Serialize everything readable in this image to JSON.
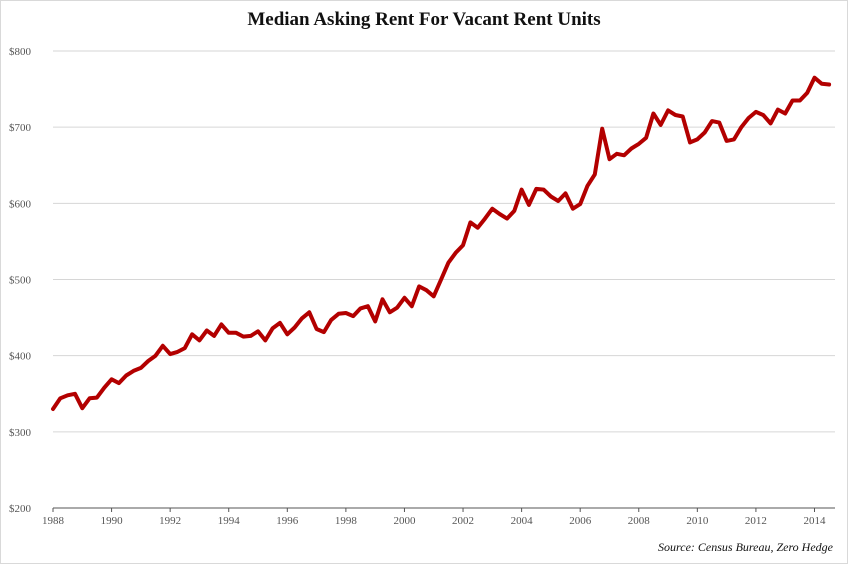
{
  "chart_data": {
    "type": "line",
    "title": "Median Asking Rent For Vacant Rent Units",
    "source": "Source: Census Bureau, Zero Hedge",
    "xlim": [
      1988,
      2014.7
    ],
    "ylim": [
      200,
      800
    ],
    "x_ticks": [
      1988,
      1990,
      1992,
      1994,
      1996,
      1998,
      2000,
      2002,
      2004,
      2006,
      2008,
      2010,
      2012,
      2014
    ],
    "y_ticks": [
      200,
      300,
      400,
      500,
      600,
      700,
      800
    ],
    "y_tick_labels": [
      "$200",
      "$300",
      "$400",
      "$500",
      "$600",
      "$700",
      "$800"
    ],
    "grid": true,
    "line_color": "#b30000",
    "series": [
      {
        "x": [
          1988.0,
          1988.25,
          1988.5,
          1988.75,
          1989.0,
          1989.25,
          1989.5,
          1989.75,
          1990.0,
          1990.25,
          1990.5,
          1990.75,
          1991.0,
          1991.25,
          1991.5,
          1991.75,
          1992.0,
          1992.25,
          1992.5,
          1992.75,
          1993.0,
          1993.25,
          1993.5,
          1993.75,
          1994.0,
          1994.25,
          1994.5,
          1994.75,
          1995.0,
          1995.25,
          1995.5,
          1995.75,
          1996.0,
          1996.25,
          1996.5,
          1996.75,
          1997.0,
          1997.25,
          1997.5,
          1997.75,
          1998.0,
          1998.25,
          1998.5,
          1998.75,
          1999.0,
          1999.25,
          1999.5,
          1999.75,
          2000.0,
          2000.25,
          2000.5,
          2000.75,
          2001.0,
          2001.25,
          2001.5,
          2001.75,
          2002.0,
          2002.25,
          2002.5,
          2002.75,
          2003.0,
          2003.25,
          2003.5,
          2003.75,
          2004.0,
          2004.25,
          2004.5,
          2004.75,
          2005.0,
          2005.25,
          2005.5,
          2005.75,
          2006.0,
          2006.25,
          2006.5,
          2006.75,
          2007.0,
          2007.25,
          2007.5,
          2007.75,
          2008.0,
          2008.25,
          2008.5,
          2008.75,
          2009.0,
          2009.25,
          2009.5,
          2009.75,
          2010.0,
          2010.25,
          2010.5,
          2010.75,
          2011.0,
          2011.25,
          2011.5,
          2011.75,
          2012.0,
          2012.25,
          2012.5,
          2012.75,
          2013.0,
          2013.25,
          2013.5,
          2013.75,
          2014.0,
          2014.25,
          2014.5
        ],
        "y": [
          330,
          344,
          348,
          350,
          331,
          344,
          345,
          358,
          369,
          364,
          374,
          380,
          384,
          393,
          400,
          413,
          402,
          405,
          410,
          428,
          420,
          433,
          426,
          441,
          430,
          430,
          425,
          426,
          432,
          420,
          436,
          443,
          428,
          437,
          449,
          457,
          435,
          431,
          447,
          455,
          456,
          452,
          462,
          465,
          445,
          474,
          457,
          463,
          476,
          465,
          491,
          486,
          478,
          500,
          522,
          535,
          545,
          575,
          568,
          580,
          593,
          586,
          580,
          590,
          618,
          598,
          619,
          618,
          609,
          603,
          613,
          593,
          599,
          623,
          638,
          698,
          658,
          665,
          663,
          672,
          678,
          686,
          718,
          703,
          722,
          716,
          714,
          680,
          684,
          693,
          708,
          706,
          682,
          684,
          700,
          712,
          720,
          716,
          705,
          723,
          718,
          735,
          735,
          745,
          765,
          757,
          756
        ]
      }
    ]
  }
}
